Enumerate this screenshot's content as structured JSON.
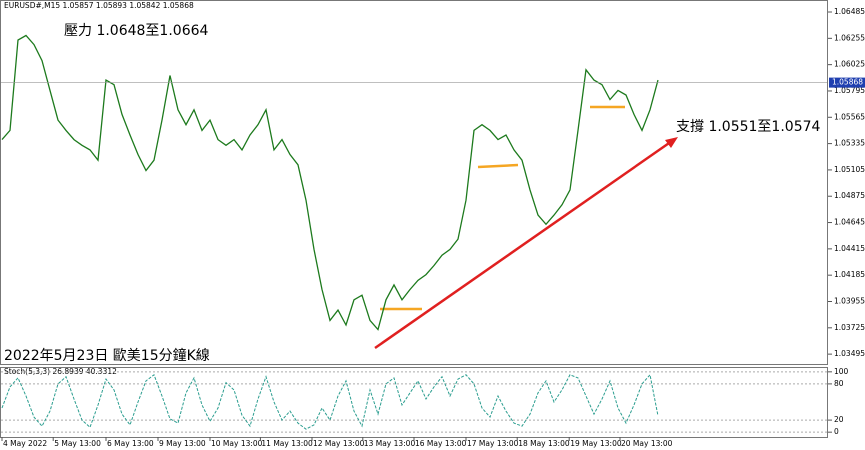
{
  "header": "EURUSD#,M15  1.05857 1.05893 1.05842 1.05868",
  "annotations": {
    "resistance": "壓力 1.0648至1.0664",
    "support": "支撐 1.0551至1.0574",
    "caption": "2022年5月23日 歐美15分鐘K線"
  },
  "last_price": 1.05868,
  "chart_data": [
    {
      "type": "line",
      "x": [
        0,
        1,
        2,
        3,
        4,
        5,
        6,
        7,
        8,
        9,
        10,
        11,
        12,
        13,
        14,
        15,
        16,
        17,
        18,
        19,
        20,
        21,
        22,
        23,
        24,
        25,
        26,
        27,
        28,
        29,
        30,
        31,
        32,
        33,
        34,
        35,
        36,
        37,
        38,
        39,
        40,
        41,
        42,
        43,
        44,
        45,
        46,
        47,
        48,
        49,
        50,
        51,
        52,
        53,
        54,
        55,
        56,
        57,
        58,
        59,
        60,
        61,
        62,
        63,
        64,
        65,
        66,
        67,
        68,
        69,
        70,
        71,
        72,
        73,
        74,
        75,
        76,
        77,
        78,
        79,
        80,
        81,
        82
      ],
      "series": [
        {
          "name": "EURUSD#,M15",
          "color": "#1d7a1d",
          "values": [
            1.0537,
            1.0545,
            1.0624,
            1.0628,
            1.062,
            1.0606,
            1.058,
            1.0554,
            1.0545,
            1.0537,
            1.0532,
            1.0528,
            1.0519,
            1.0589,
            1.0585,
            1.0559,
            1.0541,
            1.0524,
            1.051,
            1.0519,
            1.0554,
            1.0593,
            1.0563,
            1.055,
            1.0563,
            1.0545,
            1.0554,
            1.0537,
            1.0532,
            1.0537,
            1.0528,
            1.0541,
            1.055,
            1.0563,
            1.0528,
            1.0537,
            1.0524,
            1.0515,
            1.0484,
            1.0441,
            1.0406,
            1.0379,
            1.0388,
            1.0375,
            1.0397,
            1.0401,
            1.0379,
            1.0371,
            1.0397,
            1.041,
            1.0397,
            1.0406,
            1.0414,
            1.0419,
            1.0427,
            1.0436,
            1.0441,
            1.045,
            1.0484,
            1.0545,
            1.055,
            1.0545,
            1.0537,
            1.0541,
            1.0528,
            1.0519,
            1.0493,
            1.0471,
            1.0463,
            1.0471,
            1.048,
            1.0493,
            1.0545,
            1.0598,
            1.0589,
            1.0585,
            1.0572,
            1.058,
            1.0576,
            1.0559,
            1.0545,
            1.0563,
            1.0589
          ]
        }
      ],
      "xlim": [
        0,
        103
      ],
      "xticks": [
        {
          "value": 0,
          "label": "4 May 2022"
        },
        {
          "value": 6.4,
          "label": "5 May 13:00"
        },
        {
          "value": 13,
          "label": "6 May 13:00"
        },
        {
          "value": 19.5,
          "label": "9 May 13:00"
        },
        {
          "value": 26,
          "label": "10 May 13:00"
        },
        {
          "value": 32.3,
          "label": "11 May 13:00"
        },
        {
          "value": 38.75,
          "label": "12 May 13:00"
        },
        {
          "value": 45.1,
          "label": "13 May 13:00"
        },
        {
          "value": 51.5,
          "label": "16 May 13:00"
        },
        {
          "value": 58,
          "label": "17 May 13:00"
        },
        {
          "value": 64.4,
          "label": "18 May 13:00"
        },
        {
          "value": 70.9,
          "label": "19 May 13:00"
        },
        {
          "value": 77.25,
          "label": "20 May 13:00"
        }
      ],
      "ylim": [
        1.034,
        1.0659
      ],
      "yticks": [
        1.06485,
        1.06255,
        1.06025,
        1.05795,
        1.05565,
        1.05335,
        1.05105,
        1.04875,
        1.04645,
        1.04415,
        1.04185,
        1.03955,
        1.03725,
        1.03495
      ]
    },
    {
      "type": "line",
      "title": "Stoch(5,3,3) 26.8939 40.3312",
      "x": [
        0,
        1,
        2,
        3,
        4,
        5,
        6,
        7,
        8,
        9,
        10,
        11,
        12,
        13,
        14,
        15,
        16,
        17,
        18,
        19,
        20,
        21,
        22,
        23,
        24,
        25,
        26,
        27,
        28,
        29,
        30,
        31,
        32,
        33,
        34,
        35,
        36,
        37,
        38,
        39,
        40,
        41,
        42,
        43,
        44,
        45,
        46,
        47,
        48,
        49,
        50,
        51,
        52,
        53,
        54,
        55,
        56,
        57,
        58,
        59,
        60,
        61,
        62,
        63,
        64,
        65,
        66,
        67,
        68,
        69,
        70,
        71,
        72,
        73,
        74,
        75,
        76,
        77,
        78,
        79,
        80,
        81,
        82
      ],
      "series": [
        {
          "name": "Stoch",
          "color": "#2a9d8f",
          "values": [
            40,
            75,
            90,
            60,
            25,
            10,
            35,
            80,
            92,
            55,
            20,
            8,
            45,
            88,
            70,
            30,
            12,
            50,
            85,
            95,
            60,
            22,
            15,
            65,
            90,
            45,
            18,
            40,
            82,
            70,
            28,
            10,
            55,
            92,
            50,
            20,
            35,
            15,
            5,
            12,
            40,
            20,
            60,
            85,
            35,
            10,
            70,
            30,
            80,
            90,
            45,
            65,
            85,
            55,
            75,
            92,
            60,
            88,
            95,
            80,
            40,
            25,
            60,
            35,
            15,
            10,
            30,
            65,
            85,
            50,
            70,
            95,
            90,
            60,
            30,
            55,
            85,
            40,
            15,
            45,
            80,
            95,
            27
          ]
        }
      ],
      "xlim": [
        0,
        103
      ],
      "ylim": [
        -8,
        108
      ],
      "yticks": [
        100,
        80,
        20,
        0
      ]
    }
  ]
}
